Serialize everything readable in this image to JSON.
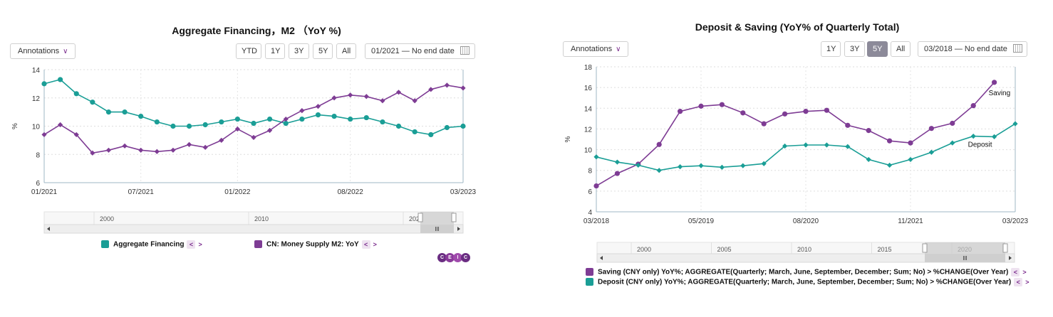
{
  "colors": {
    "teal": "#1a9e96",
    "purple": "#7e3c94",
    "accent": "#7b2d8e",
    "active_btn": "#8c8a99"
  },
  "left": {
    "title": "Aggregate Financing，M2 （YoY %)",
    "annotations_label": "Annotations",
    "ranges": [
      "YTD",
      "1Y",
      "3Y",
      "5Y",
      "All"
    ],
    "date_from": "01/2021",
    "date_sep": "—",
    "date_to": "No end date",
    "calendar_icon": "calendar-icon",
    "navigator_years": [
      "2000",
      "2010",
      "202"
    ],
    "legend": [
      "Aggregate Financing",
      "CN: Money Supply M2: YoY"
    ],
    "logo_letters": [
      "C",
      "E",
      "I",
      "C"
    ]
  },
  "right": {
    "title": "Deposit & Saving (YoY% of Quarterly Total)",
    "annotations_label": "Annotations",
    "ranges": [
      "1Y",
      "3Y",
      "5Y",
      "All"
    ],
    "active_range": "5Y",
    "date_from": "03/2018",
    "date_sep": "—",
    "date_to": "No end date",
    "calendar_icon": "calendar-icon",
    "navigator_years": [
      "2000",
      "2005",
      "2010",
      "2015",
      "2020"
    ],
    "legend": [
      "Saving (CNY only) YoY%; AGGREGATE(Quarterly; March, June, September, December; Sum; No) > %CHANGE(Over Year)",
      "Deposit (CNY only) YoY%; AGGREGATE(Quarterly; March, June, September, December; Sum; No) > %CHANGE(Over Year)"
    ]
  },
  "chart_data": [
    {
      "type": "line",
      "title": "Aggregate Financing，M2 （YoY %)",
      "xlabel": "",
      "ylabel": "%",
      "x_tick_labels": [
        "01/2021",
        "07/2021",
        "01/2022",
        "08/2022",
        "03/2023"
      ],
      "x_tick_index": [
        0,
        6,
        12,
        19,
        26
      ],
      "ylim": [
        6,
        14
      ],
      "y_ticks": [
        6,
        8,
        10,
        12,
        14
      ],
      "grid": true,
      "x": [
        "01/2021",
        "02/2021",
        "03/2021",
        "04/2021",
        "05/2021",
        "06/2021",
        "07/2021",
        "08/2021",
        "09/2021",
        "10/2021",
        "11/2021",
        "12/2021",
        "01/2022",
        "02/2022",
        "03/2022",
        "04/2022",
        "05/2022",
        "06/2022",
        "07/2022",
        "08/2022",
        "09/2022",
        "10/2022",
        "11/2022",
        "12/2022",
        "01/2023",
        "02/2023",
        "03/2023"
      ],
      "series": [
        {
          "name": "Aggregate Financing",
          "color": "#1a9e96",
          "marker": "circle",
          "values": [
            13.0,
            13.3,
            12.3,
            11.7,
            11.0,
            11.0,
            10.7,
            10.3,
            10.0,
            10.0,
            10.1,
            10.3,
            10.5,
            10.2,
            10.5,
            10.2,
            10.5,
            10.8,
            10.7,
            10.5,
            10.6,
            10.3,
            10.0,
            9.6,
            9.4,
            9.9,
            10.0
          ]
        },
        {
          "name": "CN: Money Supply M2: YoY",
          "color": "#7e3c94",
          "marker": "diamond",
          "values": [
            9.4,
            10.1,
            9.4,
            8.1,
            8.3,
            8.6,
            8.3,
            8.2,
            8.3,
            8.7,
            8.5,
            9.0,
            9.8,
            9.2,
            9.7,
            10.5,
            11.1,
            11.4,
            12.0,
            12.2,
            12.1,
            11.8,
            12.4,
            11.8,
            12.6,
            12.9,
            12.7
          ]
        }
      ]
    },
    {
      "type": "line",
      "title": "Deposit & Saving (YoY% of Quarterly Total)",
      "xlabel": "",
      "ylabel": "%",
      "x_tick_labels": [
        "03/2018",
        "05/2019",
        "08/2020",
        "11/2021",
        "03/2023"
      ],
      "x_tick_index": [
        0,
        5,
        10,
        15,
        20
      ],
      "ylim": [
        4,
        18
      ],
      "y_ticks": [
        4,
        6,
        8,
        10,
        12,
        14,
        16,
        18
      ],
      "grid": true,
      "x": [
        "03/2018",
        "06/2018",
        "09/2018",
        "12/2018",
        "03/2019",
        "06/2019",
        "09/2019",
        "12/2019",
        "03/2020",
        "06/2020",
        "09/2020",
        "12/2020",
        "03/2021",
        "06/2021",
        "09/2021",
        "12/2021",
        "03/2022",
        "06/2022",
        "09/2022",
        "12/2022",
        "03/2023"
      ],
      "annotations": [
        "Saving",
        "Deposit"
      ],
      "series": [
        {
          "name": "Saving",
          "color": "#7e3c94",
          "marker": "circle",
          "values": [
            6.5,
            7.7,
            8.6,
            10.5,
            13.7,
            14.2,
            14.35,
            13.55,
            12.5,
            13.45,
            13.7,
            13.8,
            12.35,
            11.85,
            10.85,
            10.65,
            12.05,
            12.55,
            14.25,
            16.5,
            null
          ]
        },
        {
          "name": "Deposit",
          "color": "#1a9e96",
          "marker": "diamond",
          "values": [
            9.3,
            8.8,
            8.5,
            8.0,
            8.35,
            8.45,
            8.3,
            8.45,
            8.65,
            10.35,
            10.45,
            10.45,
            10.3,
            9.05,
            8.5,
            9.05,
            9.75,
            10.65,
            11.3,
            11.25,
            12.5
          ]
        }
      ]
    }
  ]
}
